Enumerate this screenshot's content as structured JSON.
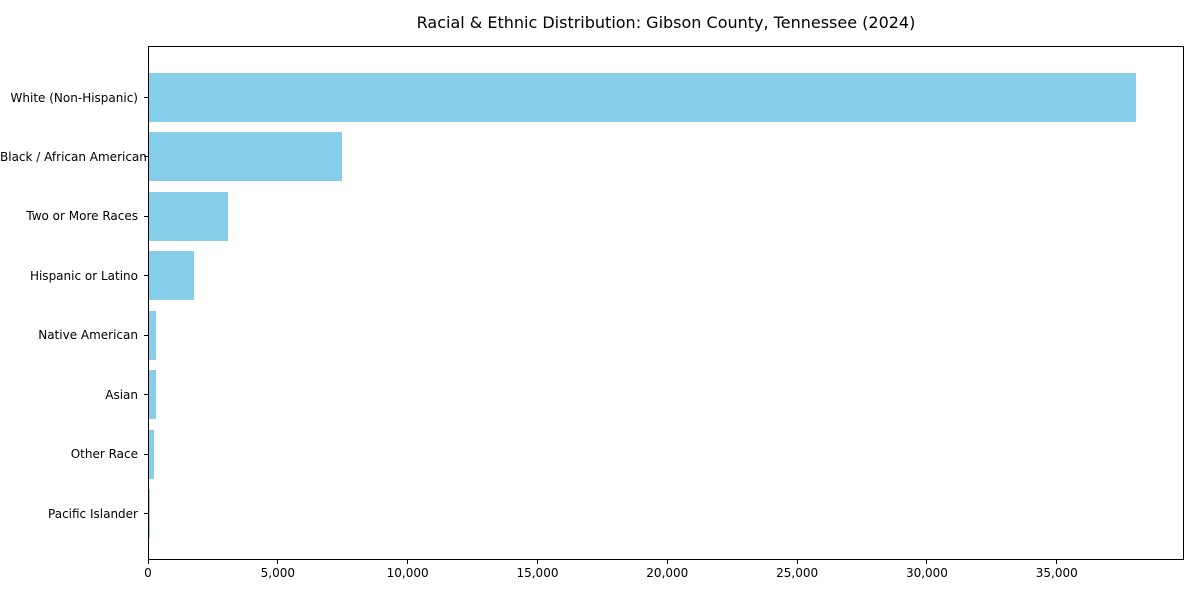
{
  "chart_data": {
    "type": "bar",
    "orientation": "horizontal",
    "title": "Racial & Ethnic Distribution: Gibson County, Tennessee (2024)",
    "categories": [
      "White (Non-Hispanic)",
      "Black / African American",
      "Two or More Races",
      "Hispanic or Latino",
      "Native American",
      "Asian",
      "Other Race",
      "Pacific Islander"
    ],
    "values": [
      38000,
      7450,
      3050,
      1750,
      280,
      260,
      190,
      20
    ],
    "xlabel": "",
    "ylabel": "",
    "xlim": [
      0,
      39900
    ],
    "xticks": [
      0,
      5000,
      10000,
      15000,
      20000,
      25000,
      30000,
      35000
    ],
    "xtick_labels": [
      "0",
      "5,000",
      "10,000",
      "15,000",
      "20,000",
      "25,000",
      "30,000",
      "35,000"
    ],
    "grid": false,
    "legend": null,
    "bar_color": "#87CEEB",
    "axis_color": "#000000",
    "text_color": "#000000",
    "background_color": "#ffffff"
  }
}
